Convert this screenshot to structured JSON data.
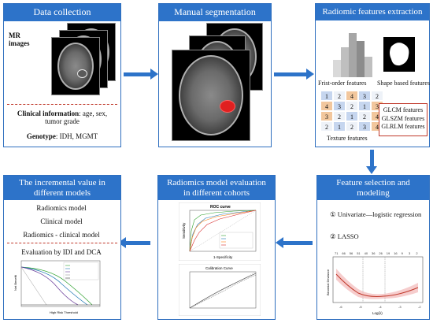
{
  "panels": {
    "data_collection": {
      "title": "Data collection",
      "mr_label": "MR\nimages",
      "clinical_bold": "Clinical information",
      "clinical_rest": ": age, sex,",
      "clinical_line2": "tumor grade",
      "genotype_bold": "Genotype",
      "genotype_rest": ": IDH, MGMT"
    },
    "manual_segmentation": {
      "title": "Manual segmentation"
    },
    "radiomic_extraction": {
      "title": "Radiomic features extraction",
      "first_order": "Frist-order features",
      "shape_based": "Shape based features",
      "texture": "Texture features",
      "texture_types": [
        "GLCM features",
        "GLSZM features",
        "GLRLM features"
      ],
      "matrix": [
        [
          "1",
          "2",
          "4",
          "3",
          "2"
        ],
        [
          "4",
          "3",
          "2",
          "1",
          "3"
        ],
        [
          "3",
          "2",
          "1",
          "2",
          "4"
        ],
        [
          "2",
          "1",
          "2",
          "3",
          "4"
        ]
      ]
    },
    "feature_selection": {
      "title_line1": "Feature selection and",
      "title_line2": "modeling",
      "step1_num": "①",
      "step1": "Univariate—logistic regression",
      "step2_num": "②",
      "step2": "LASSO",
      "lasso_top_ticks": [
        "71",
        "66",
        "56",
        "51",
        "40",
        "36",
        "26",
        "19",
        "16",
        "9",
        "3",
        "2"
      ],
      "lasso_ylabel": "Binomial Deviance",
      "lasso_xlabel": "Log(λ)",
      "lasso_xticks": [
        "-6",
        "-5",
        "-4",
        "-3",
        "-2"
      ]
    },
    "radiomics_eval": {
      "title_line1": "Radiomics model evaluation",
      "title_line2": "in different cohorts",
      "roc_title": "ROC curve",
      "roc_ylabel": "Sensitivity",
      "roc_xlabel": "1-Specificity",
      "cal_title": "Calibration Curve"
    },
    "incremental_value": {
      "title_line1": "The incremental value in",
      "title_line2": "different models",
      "models": [
        "Radiomics model",
        "Clinical model",
        "Radiomics - clinical model"
      ],
      "evaluation": "Evaluation by IDI and DCA",
      "dca_ylabel": "Net Benefit",
      "dca_xlabel": "High Risk Threshold"
    }
  },
  "colors": {
    "panel_header": "#2d73c9",
    "arrow": "#2d73c9",
    "dash": "#c0392b",
    "lesion": "#e02020"
  }
}
